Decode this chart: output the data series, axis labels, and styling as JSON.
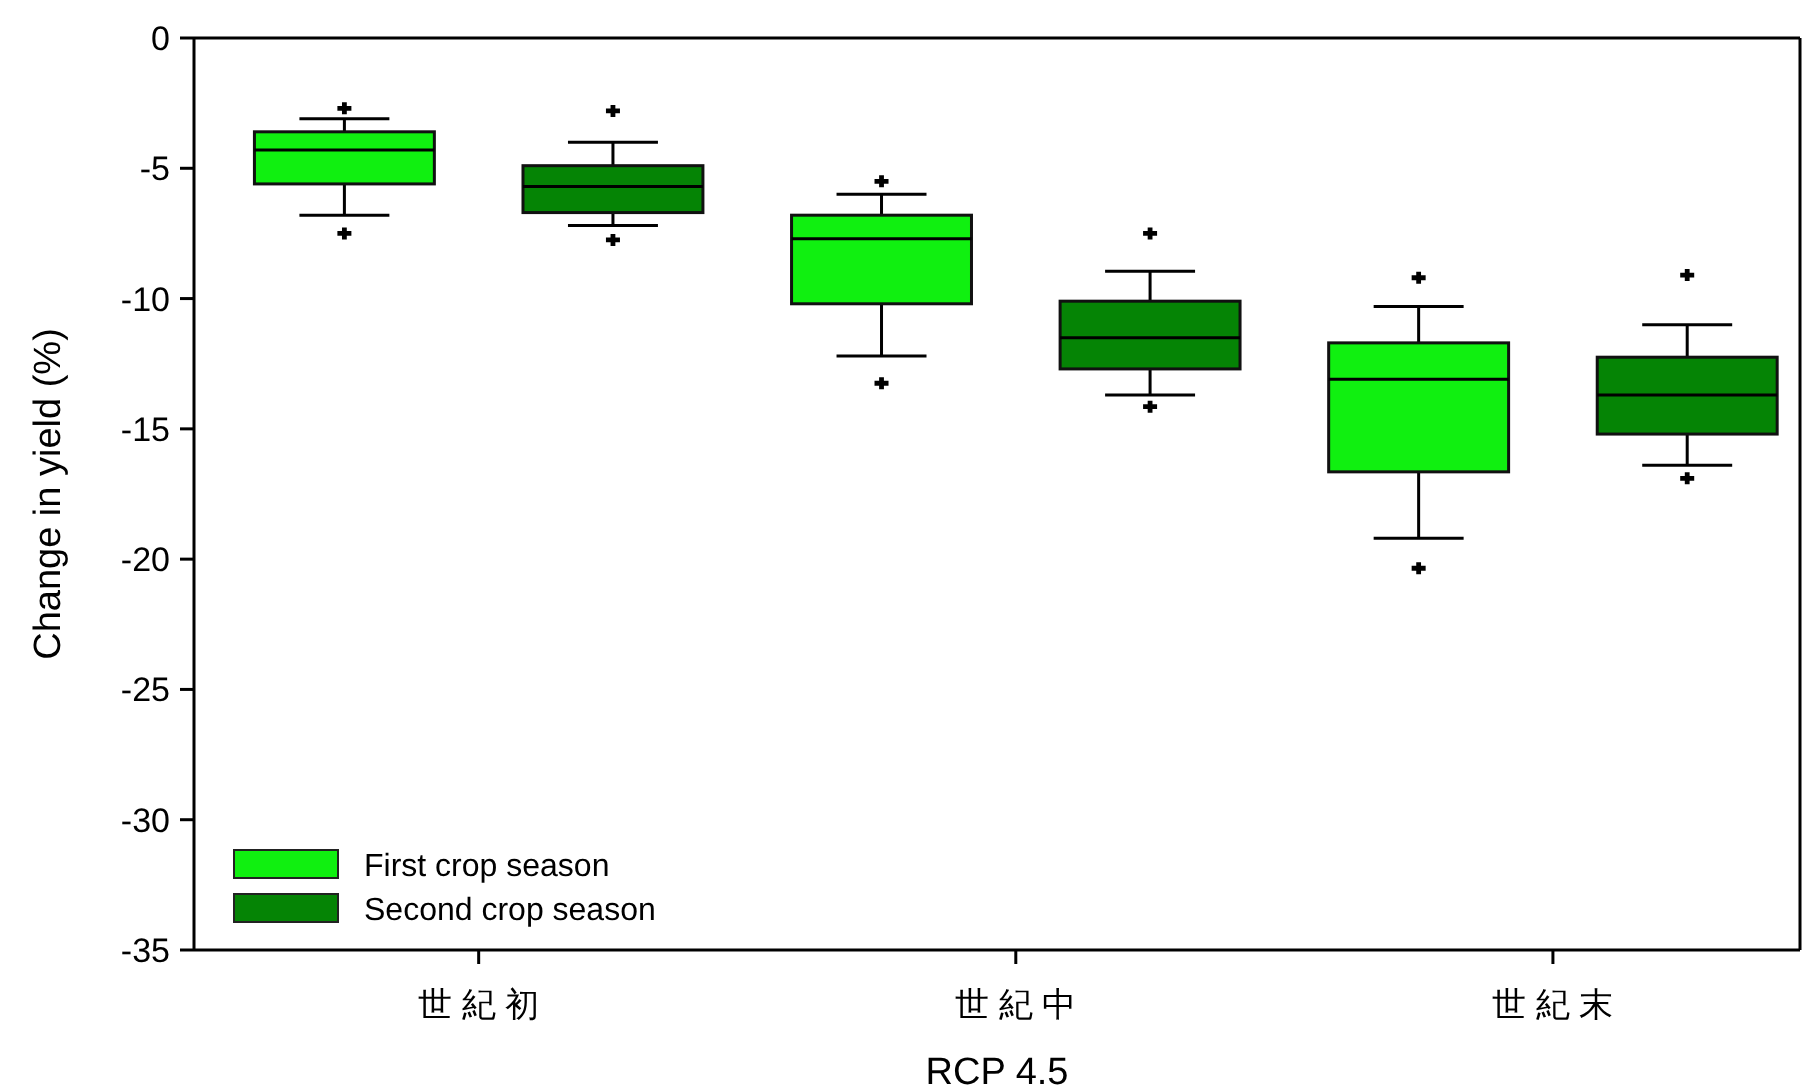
{
  "chart_data": {
    "type": "box",
    "ylabel": "Change in yield (%)",
    "xlabel": "RCP 4.5",
    "categories": [
      "世 紀 初",
      "世 紀 中",
      "世 紀 末"
    ],
    "series": [
      {
        "name": "First crop season",
        "color": "#10f010",
        "boxes": [
          {
            "low": -6.8,
            "q1": -5.6,
            "median": -4.3,
            "q3": -3.6,
            "high": -3.1,
            "outliers": [
              -2.7,
              -7.5
            ]
          },
          {
            "low": -12.2,
            "q1": -10.2,
            "median": -7.7,
            "q3": -6.8,
            "high": -6.0,
            "outliers": [
              -5.5,
              -13.25
            ]
          },
          {
            "low": -19.2,
            "q1": -16.65,
            "median": -13.1,
            "q3": -11.7,
            "high": -10.3,
            "outliers": [
              -9.2,
              -20.35
            ]
          }
        ]
      },
      {
        "name": "Second crop season",
        "color": "#058405",
        "boxes": [
          {
            "low": -7.2,
            "q1": -6.7,
            "median": -5.7,
            "q3": -4.9,
            "high": -4.0,
            "outliers": [
              -2.8,
              -7.75
            ]
          },
          {
            "low": -13.7,
            "q1": -12.7,
            "median": -11.5,
            "q3": -10.1,
            "high": -8.95,
            "outliers": [
              -7.5,
              -14.15
            ]
          },
          {
            "low": -16.4,
            "q1": -15.2,
            "median": -13.7,
            "q3": -12.25,
            "high": -11.0,
            "outliers": [
              -9.1,
              -16.9
            ]
          }
        ]
      }
    ],
    "ylim": [
      -35,
      0
    ],
    "yticks": [
      -35,
      -30,
      -25,
      -20,
      -15,
      -10,
      -5,
      0
    ],
    "legend": "bottom left",
    "grid": false,
    "marker": "cross"
  }
}
